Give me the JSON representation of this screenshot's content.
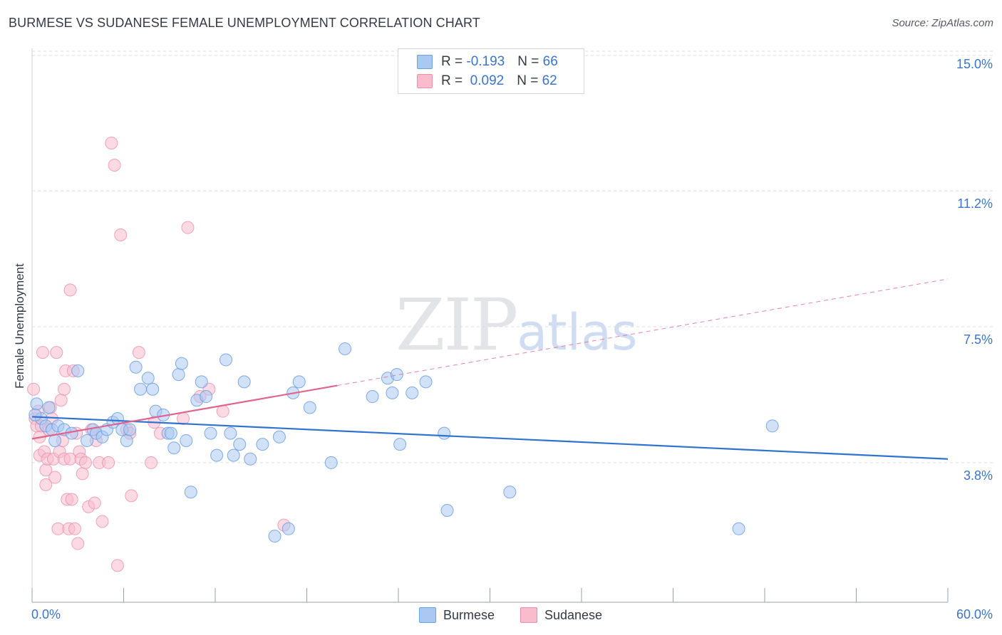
{
  "title": "BURMESE VS SUDANESE FEMALE UNEMPLOYMENT CORRELATION CHART",
  "source": "Source: ZipAtlas.com",
  "watermark": {
    "zip": "ZIP",
    "atlas": "atlas"
  },
  "colors": {
    "burmese": "#a9c8f2",
    "burmese_stroke": "#6b9ee3",
    "burmese_line": "#2e73d0",
    "sudanese": "#f8bccd",
    "sudanese_stroke": "#ec8fab",
    "sudanese_line": "#e0648f",
    "tick_text": "#3b74c9",
    "grid": "#d9dce1"
  },
  "legend": {
    "burmese": {
      "r_label": "R = ",
      "r_value": "-0.193",
      "n_label": "N = ",
      "n_value": "66"
    },
    "sudanese": {
      "r_label": "R = ",
      "r_value": " 0.092",
      "n_label": "N = ",
      "n_value": "62"
    }
  },
  "bottom_legend": {
    "burmese": "Burmese",
    "sudanese": "Sudanese"
  },
  "chart_data": {
    "type": "scatter",
    "title": "BURMESE VS SUDANESE FEMALE UNEMPLOYMENT CORRELATION CHART",
    "xlabel": "",
    "ylabel": "Female Unemployment",
    "xlim": [
      0,
      60
    ],
    "ylim": [
      0,
      15.5
    ],
    "x_tick_labels": [
      "0.0%",
      "60.0%"
    ],
    "y_ticks": [
      3.8,
      7.5,
      11.2,
      15.0
    ],
    "y_tick_labels": [
      "3.8%",
      "7.5%",
      "11.2%",
      "15.0%"
    ],
    "grid": "horizontal dashed",
    "legend_position": "top-center",
    "series": [
      {
        "name": "Burmese",
        "r": -0.193,
        "n": 66,
        "trend": {
          "x0": 0,
          "y0": 5.05,
          "x1": 60,
          "y1": 3.9
        },
        "points": [
          [
            0.3,
            5.4
          ],
          [
            0.6,
            5.0
          ],
          [
            0.9,
            4.8
          ],
          [
            1.1,
            5.3
          ],
          [
            1.3,
            4.7
          ],
          [
            1.5,
            4.4
          ],
          [
            1.7,
            4.8
          ],
          [
            2.1,
            4.7
          ],
          [
            2.6,
            4.6
          ],
          [
            3.0,
            6.3
          ],
          [
            3.6,
            4.4
          ],
          [
            4.0,
            4.7
          ],
          [
            4.2,
            4.6
          ],
          [
            4.6,
            4.5
          ],
          [
            4.9,
            4.7
          ],
          [
            5.3,
            4.9
          ],
          [
            5.6,
            5.0
          ],
          [
            5.9,
            4.7
          ],
          [
            6.2,
            4.4
          ],
          [
            6.4,
            4.7
          ],
          [
            6.8,
            6.4
          ],
          [
            7.1,
            5.8
          ],
          [
            7.6,
            6.1
          ],
          [
            7.9,
            5.8
          ],
          [
            8.1,
            5.2
          ],
          [
            8.6,
            5.1
          ],
          [
            8.9,
            4.6
          ],
          [
            9.1,
            4.6
          ],
          [
            9.3,
            4.2
          ],
          [
            9.6,
            6.2
          ],
          [
            9.8,
            6.5
          ],
          [
            10.1,
            4.4
          ],
          [
            10.4,
            3.0
          ],
          [
            10.8,
            5.5
          ],
          [
            11.1,
            6.0
          ],
          [
            11.4,
            5.6
          ],
          [
            11.7,
            4.6
          ],
          [
            12.1,
            4.0
          ],
          [
            12.7,
            6.6
          ],
          [
            13.0,
            4.6
          ],
          [
            13.2,
            4.0
          ],
          [
            13.6,
            4.3
          ],
          [
            13.9,
            6.0
          ],
          [
            14.3,
            3.9
          ],
          [
            15.1,
            4.3
          ],
          [
            15.9,
            1.8
          ],
          [
            16.2,
            4.5
          ],
          [
            16.8,
            2.0
          ],
          [
            17.1,
            5.7
          ],
          [
            17.5,
            6.0
          ],
          [
            18.2,
            5.3
          ],
          [
            19.6,
            3.8
          ],
          [
            20.5,
            6.9
          ],
          [
            22.3,
            5.6
          ],
          [
            23.3,
            6.1
          ],
          [
            23.6,
            5.7
          ],
          [
            23.9,
            6.2
          ],
          [
            24.1,
            4.3
          ],
          [
            24.9,
            5.7
          ],
          [
            25.8,
            6.0
          ],
          [
            27.0,
            4.6
          ],
          [
            27.2,
            2.5
          ],
          [
            31.3,
            3.0
          ],
          [
            46.3,
            2.0
          ],
          [
            48.5,
            4.8
          ],
          [
            0.2,
            5.1
          ]
        ]
      },
      {
        "name": "Sudanese",
        "r": 0.092,
        "n": 62,
        "trend": {
          "x0": 0,
          "y0": 4.45,
          "x1": 20,
          "y1": 5.9,
          "x_ext": 60,
          "y_ext": 8.8
        },
        "points": [
          [
            0.1,
            5.8
          ],
          [
            0.2,
            5.0
          ],
          [
            0.3,
            4.8
          ],
          [
            0.4,
            5.2
          ],
          [
            0.5,
            4.5
          ],
          [
            0.5,
            4.0
          ],
          [
            0.6,
            4.8
          ],
          [
            0.7,
            6.8
          ],
          [
            0.8,
            4.1
          ],
          [
            0.9,
            3.6
          ],
          [
            0.9,
            3.2
          ],
          [
            1.0,
            3.9
          ],
          [
            1.1,
            4.7
          ],
          [
            1.2,
            5.3
          ],
          [
            1.3,
            5.0
          ],
          [
            1.4,
            3.9
          ],
          [
            1.5,
            3.4
          ],
          [
            1.6,
            6.8
          ],
          [
            1.7,
            2.0
          ],
          [
            1.8,
            4.1
          ],
          [
            1.9,
            5.5
          ],
          [
            2.0,
            4.4
          ],
          [
            2.1,
            5.8
          ],
          [
            2.1,
            3.9
          ],
          [
            2.2,
            6.3
          ],
          [
            2.3,
            2.8
          ],
          [
            2.4,
            2.0
          ],
          [
            2.5,
            3.9
          ],
          [
            2.5,
            8.5
          ],
          [
            2.6,
            2.8
          ],
          [
            2.7,
            6.3
          ],
          [
            2.8,
            2.0
          ],
          [
            2.9,
            4.6
          ],
          [
            3.0,
            1.6
          ],
          [
            3.1,
            4.1
          ],
          [
            3.2,
            3.9
          ],
          [
            3.3,
            3.5
          ],
          [
            3.5,
            3.8
          ],
          [
            3.7,
            2.6
          ],
          [
            3.9,
            4.7
          ],
          [
            4.1,
            2.7
          ],
          [
            4.2,
            4.4
          ],
          [
            4.4,
            3.8
          ],
          [
            4.6,
            2.2
          ],
          [
            5.0,
            3.8
          ],
          [
            5.2,
            12.5
          ],
          [
            5.4,
            11.9
          ],
          [
            5.6,
            1.0
          ],
          [
            5.8,
            10.0
          ],
          [
            6.2,
            4.7
          ],
          [
            6.4,
            4.6
          ],
          [
            6.5,
            2.9
          ],
          [
            7.0,
            6.8
          ],
          [
            7.8,
            3.8
          ],
          [
            8.0,
            4.9
          ],
          [
            8.4,
            4.6
          ],
          [
            9.9,
            5.0
          ],
          [
            10.2,
            10.2
          ],
          [
            11.0,
            5.6
          ],
          [
            11.6,
            5.8
          ],
          [
            16.5,
            2.1
          ],
          [
            12.5,
            5.2
          ]
        ]
      }
    ]
  }
}
